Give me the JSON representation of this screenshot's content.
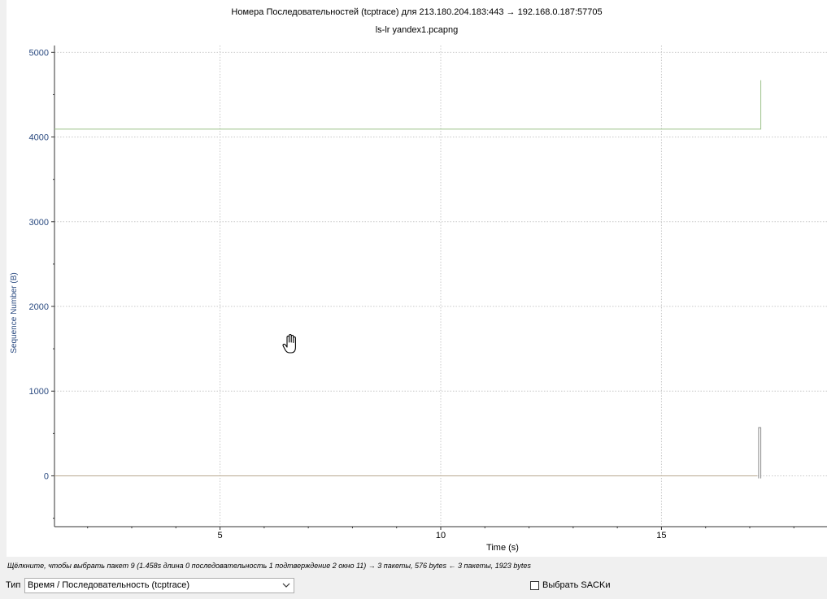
{
  "chart_data": {
    "type": "line",
    "title": "Номера Последовательностей (tcptrace) для 213.180.204.183:443 → 192.168.0.187:57705",
    "subtitle": "ls-lr yandex1.pcapng",
    "xlabel": "Time (s)",
    "ylabel": "Sequence Number (B)",
    "xlim": [
      1.25,
      18.75
    ],
    "ylim": [
      -600,
      5080
    ],
    "xticks": [
      5,
      10,
      15
    ],
    "yticks": [
      0,
      1000,
      2000,
      3000,
      4000,
      5000
    ],
    "grid": true,
    "series": [
      {
        "color": "#9dc28a",
        "x": [
          1.25,
          17.25,
          17.25
        ],
        "y": [
          4093,
          4093,
          4670
        ]
      },
      {
        "color": "#b8a890",
        "x": [
          1.25,
          17.17
        ],
        "y": [
          0,
          0
        ]
      },
      {
        "color": "#8a8a8a",
        "x": [
          17.2,
          17.2,
          17.25,
          17.25
        ],
        "y": [
          -30,
          570,
          570,
          -30
        ]
      }
    ]
  },
  "status": {
    "text": "Щёлкните, чтобы выбрать пакет 9 (1.458s длина 0 последовательность 1 подтверждение 2 окно 11) → 3 пакеты, 576 bytes ← 3 пакеты, 1923 bytes"
  },
  "controls": {
    "type_label": "Тип",
    "type_value": "Время / Последовательность (tcptrace)",
    "sack_label": "Выбрать SACKи",
    "sack_checked": false
  },
  "colors": {
    "axis_label": "#2a4a80",
    "grid": "#c8c8c8"
  },
  "cursor_icon": "hand-grab-icon"
}
